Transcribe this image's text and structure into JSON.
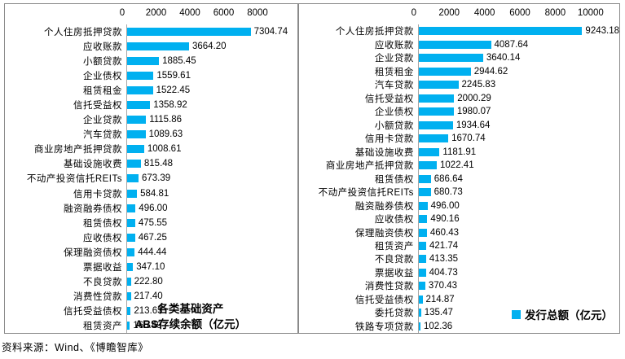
{
  "footer": {
    "source_note": "资料来源：Wind、《博瞻智库》"
  },
  "colors": {
    "bar": "#00B0F0",
    "panel_border": "#8a8a8a",
    "axis_line": "#a6a6a6"
  },
  "chart_data": [
    {
      "type": "bar",
      "orientation": "horizontal",
      "title_lines": [
        "各类基础资产",
        "ABS存续余额（亿元）"
      ],
      "xlabel": "",
      "ylabel": "",
      "xlim": [
        0,
        8000
      ],
      "ticks": [
        0,
        2000,
        4000,
        6000,
        8000
      ],
      "grid": false,
      "legend_position": "none",
      "categories": [
        "个人住房抵押贷款",
        "应收账款",
        "小额贷款",
        "企业债权",
        "租赁租金",
        "信托受益权",
        "企业贷款",
        "汽车贷款",
        "商业房地产抵押贷款",
        "基础设施收费",
        "不动产投资信托REITs",
        "信用卡贷款",
        "融资融券债权",
        "租赁债权",
        "应收债权",
        "保理融资债权",
        "票据收益",
        "不良贷款",
        "消费性贷款",
        "信托受益债权",
        "租赁资产"
      ],
      "values": [
        7304.74,
        3664.2,
        1885.45,
        1559.61,
        1522.45,
        1358.92,
        1115.86,
        1089.63,
        1008.61,
        815.48,
        673.39,
        584.81,
        496.0,
        475.55,
        467.25,
        444.44,
        347.1,
        222.8,
        217.4,
        213.63,
        165.49
      ]
    },
    {
      "type": "bar",
      "orientation": "horizontal",
      "legend": "发行总额（亿元）",
      "xlabel": "",
      "ylabel": "",
      "xlim": [
        0,
        10000
      ],
      "ticks": [
        0,
        2000,
        4000,
        6000,
        8000,
        10000
      ],
      "grid": false,
      "legend_position": "bottom-right",
      "categories": [
        "个人住房抵押贷款",
        "应收账款",
        "企业贷款",
        "租赁租金",
        "汽车贷款",
        "信托受益权",
        "企业债权",
        "小额贷款",
        "信用卡贷款",
        "基础设施收费",
        "商业房地产抵押贷款",
        "租赁债权",
        "不动产投资信托REITs",
        "融资融券债权",
        "应收债权",
        "保理融资债权",
        "租赁资产",
        "不良贷款",
        "票据收益",
        "消费性贷款",
        "信托受益债权",
        "委托贷款",
        "铁路专项贷款"
      ],
      "values": [
        9243.18,
        4087.64,
        3640.14,
        2944.62,
        2245.83,
        2000.29,
        1980.07,
        1934.64,
        1670.74,
        1181.91,
        1022.41,
        686.64,
        680.73,
        496.0,
        490.16,
        460.43,
        421.74,
        413.35,
        404.73,
        370.43,
        214.87,
        135.47,
        102.36
      ]
    }
  ]
}
